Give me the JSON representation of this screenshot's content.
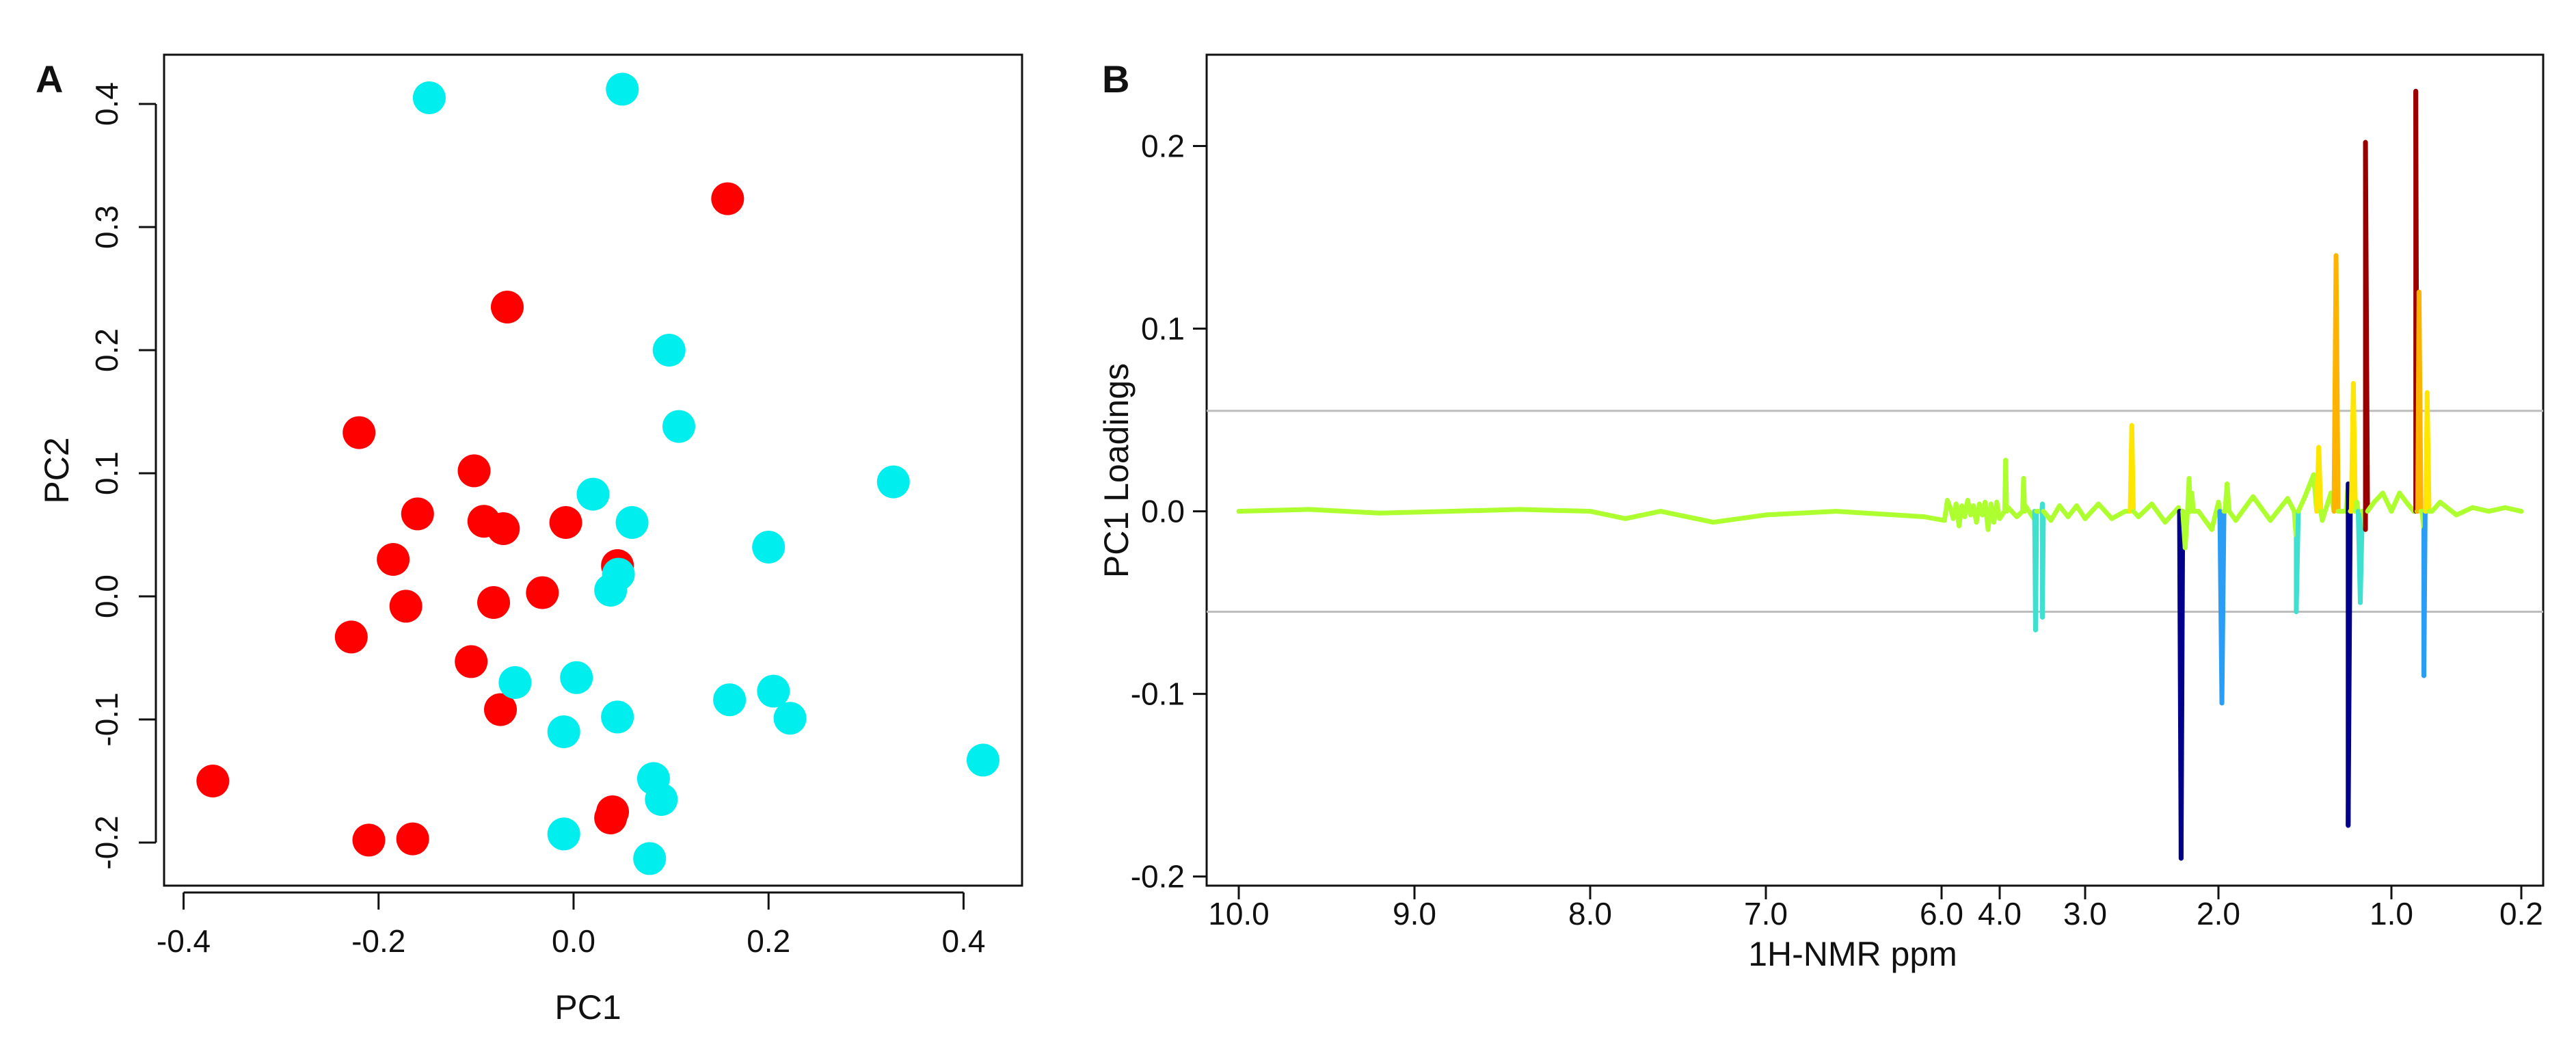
{
  "chart_data": [
    {
      "panel": "A",
      "type": "scatter",
      "xlabel": "PC1",
      "ylabel": "PC2",
      "xlim": [
        -0.42,
        0.46
      ],
      "ylim": [
        -0.235,
        0.44
      ],
      "x_ticks": [
        "-0.4",
        "-0.2",
        "0.0",
        "0.2",
        "0.4"
      ],
      "x_tick_values": [
        -0.4,
        -0.2,
        0.0,
        0.2,
        0.4
      ],
      "y_ticks": [
        "-0.2",
        "-0.1",
        "0.0",
        "0.1",
        "0.2",
        "0.3",
        "0.4"
      ],
      "y_tick_values": [
        -0.2,
        -0.1,
        0.0,
        0.1,
        0.2,
        0.3,
        0.4
      ],
      "grid": false,
      "series": [
        {
          "color": "#ff0000",
          "points": [
            [
              -0.37,
              -0.15
            ],
            [
              -0.228,
              -0.033
            ],
            [
              -0.22,
              0.133
            ],
            [
              -0.21,
              -0.198
            ],
            [
              -0.185,
              0.03
            ],
            [
              -0.172,
              -0.008
            ],
            [
              -0.165,
              -0.197
            ],
            [
              -0.16,
              0.067
            ],
            [
              -0.105,
              -0.053
            ],
            [
              -0.102,
              0.102
            ],
            [
              -0.092,
              0.061
            ],
            [
              -0.082,
              -0.005
            ],
            [
              -0.075,
              -0.092
            ],
            [
              -0.072,
              0.055
            ],
            [
              -0.068,
              0.235
            ],
            [
              -0.032,
              0.003
            ],
            [
              -0.008,
              0.06
            ],
            [
              0.038,
              -0.18
            ],
            [
              0.04,
              -0.175
            ],
            [
              0.045,
              0.025
            ],
            [
              0.158,
              0.323
            ]
          ]
        },
        {
          "color": "#00eeee",
          "points": [
            [
              -0.148,
              0.405
            ],
            [
              -0.06,
              -0.07
            ],
            [
              -0.01,
              -0.11
            ],
            [
              -0.01,
              -0.193
            ],
            [
              0.003,
              -0.066
            ],
            [
              0.02,
              0.083
            ],
            [
              0.038,
              0.005
            ],
            [
              0.045,
              -0.098
            ],
            [
              0.046,
              0.018
            ],
            [
              0.05,
              0.412
            ],
            [
              0.06,
              0.06
            ],
            [
              0.078,
              -0.213
            ],
            [
              0.082,
              -0.148
            ],
            [
              0.09,
              -0.165
            ],
            [
              0.098,
              0.2
            ],
            [
              0.108,
              0.138
            ],
            [
              0.16,
              -0.084
            ],
            [
              0.2,
              0.04
            ],
            [
              0.205,
              -0.077
            ],
            [
              0.222,
              -0.099
            ],
            [
              0.328,
              0.093
            ],
            [
              0.42,
              -0.133
            ]
          ]
        }
      ]
    },
    {
      "panel": "B",
      "type": "line",
      "xlabel": "1H-NMR ppm",
      "ylabel": "PC1 Loadings",
      "ylim": [
        -0.205,
        0.25
      ],
      "x_ticks": [
        "10.0",
        "9.0",
        "8.0",
        "7.0",
        "6.0",
        "4.0",
        "3.0",
        "2.0",
        "1.0",
        "0.2"
      ],
      "x_tick_values": [
        10.0,
        9.0,
        8.0,
        7.0,
        6.0,
        4.0,
        3.0,
        2.0,
        1.0,
        0.2
      ],
      "x_axis_note": "axis is broken between 6.0 and 4.0 ppm; descending scale",
      "y_ticks": [
        "-0.2",
        "-0.1",
        "0.0",
        "0.1",
        "0.2"
      ],
      "y_tick_values": [
        -0.2,
        -0.1,
        0.0,
        0.1,
        0.2
      ],
      "thresholds": [
        0.055,
        -0.055
      ],
      "threshold_color": "#bdbdbd",
      "grid": false,
      "colormap": [
        "#00008b",
        "#1e4fd8",
        "#2a9df4",
        "#40e0d0",
        "#adff2f",
        "#ffe600",
        "#ffb300",
        "#ff2200",
        "#9b0000"
      ],
      "baseline": [
        [
          10.0,
          0.0
        ],
        [
          9.6,
          0.001
        ],
        [
          9.2,
          -0.001
        ],
        [
          8.8,
          0.0
        ],
        [
          8.4,
          0.001
        ],
        [
          8.0,
          0.0
        ],
        [
          7.8,
          -0.004
        ],
        [
          7.6,
          0.0
        ],
        [
          7.3,
          -0.006
        ],
        [
          7.0,
          -0.002
        ],
        [
          6.6,
          0.0
        ],
        [
          6.1,
          -0.003
        ],
        [
          5.9,
          -0.005
        ],
        [
          5.8,
          0.006
        ],
        [
          5.7,
          0.002
        ],
        [
          5.6,
          -0.004
        ],
        [
          5.5,
          0.004
        ],
        [
          5.4,
          -0.008
        ],
        [
          5.3,
          0.003
        ],
        [
          5.2,
          -0.003
        ],
        [
          5.1,
          0.006
        ],
        [
          5.0,
          -0.002
        ],
        [
          4.9,
          0.003
        ],
        [
          4.8,
          -0.006
        ],
        [
          4.7,
          0.004
        ],
        [
          4.6,
          -0.002
        ],
        [
          4.5,
          0.005
        ],
        [
          4.4,
          -0.01
        ],
        [
          4.3,
          0.004
        ],
        [
          4.2,
          -0.006
        ],
        [
          4.1,
          0.005
        ],
        [
          4.0,
          -0.004
        ],
        [
          3.9,
          0.002
        ],
        [
          3.8,
          -0.003
        ],
        [
          3.7,
          0.003
        ],
        [
          3.6,
          -0.004
        ],
        [
          3.5,
          0.004
        ],
        [
          3.4,
          -0.005
        ],
        [
          3.3,
          0.003
        ],
        [
          3.2,
          -0.003
        ],
        [
          3.1,
          0.003
        ],
        [
          3.0,
          -0.004
        ],
        [
          2.9,
          0.004
        ],
        [
          2.8,
          -0.004
        ],
        [
          2.7,
          0.0
        ],
        [
          2.6,
          -0.003
        ],
        [
          2.5,
          0.004
        ],
        [
          2.4,
          -0.006
        ],
        [
          2.3,
          0.002
        ],
        [
          2.25,
          -0.02
        ],
        [
          2.15,
          0.0
        ],
        [
          2.05,
          -0.01
        ],
        [
          2.0,
          0.005
        ],
        [
          1.9,
          -0.005
        ],
        [
          1.8,
          0.008
        ],
        [
          1.7,
          -0.005
        ],
        [
          1.6,
          0.007
        ],
        [
          1.55,
          -0.015
        ],
        [
          1.5,
          0.008
        ],
        [
          1.45,
          0.02
        ],
        [
          1.4,
          -0.005
        ],
        [
          1.35,
          0.01
        ],
        [
          1.3,
          0.0
        ],
        [
          1.25,
          0.015
        ],
        [
          1.2,
          0.005
        ],
        [
          1.15,
          -0.01
        ],
        [
          1.1,
          0.005
        ],
        [
          1.05,
          0.01
        ],
        [
          1.0,
          0.0
        ],
        [
          0.95,
          0.01
        ],
        [
          0.9,
          0.004
        ],
        [
          0.85,
          0.0
        ],
        [
          0.8,
          -0.01
        ],
        [
          0.75,
          0.0
        ],
        [
          0.7,
          0.005
        ],
        [
          0.6,
          -0.002
        ],
        [
          0.5,
          0.002
        ],
        [
          0.4,
          0.0
        ],
        [
          0.3,
          0.002
        ],
        [
          0.2,
          0.0
        ]
      ],
      "spikes": [
        [
          3.93,
          0.028
        ],
        [
          3.72,
          0.018
        ],
        [
          3.58,
          -0.065
        ],
        [
          3.5,
          -0.058
        ],
        [
          2.65,
          0.047
        ],
        [
          2.28,
          -0.19
        ],
        [
          2.22,
          0.018
        ],
        [
          2.2,
          0.01
        ],
        [
          1.98,
          -0.105
        ],
        [
          1.95,
          0.015
        ],
        [
          1.55,
          -0.055
        ],
        [
          1.42,
          0.035
        ],
        [
          1.32,
          0.14
        ],
        [
          1.25,
          -0.172
        ],
        [
          1.22,
          0.07
        ],
        [
          1.18,
          -0.05
        ],
        [
          1.15,
          0.202
        ],
        [
          0.85,
          0.23
        ],
        [
          0.83,
          0.12
        ],
        [
          0.8,
          -0.09
        ],
        [
          0.78,
          0.065
        ]
      ]
    }
  ],
  "panel_a": {
    "letter": "A"
  },
  "panel_b": {
    "letter": "B"
  }
}
